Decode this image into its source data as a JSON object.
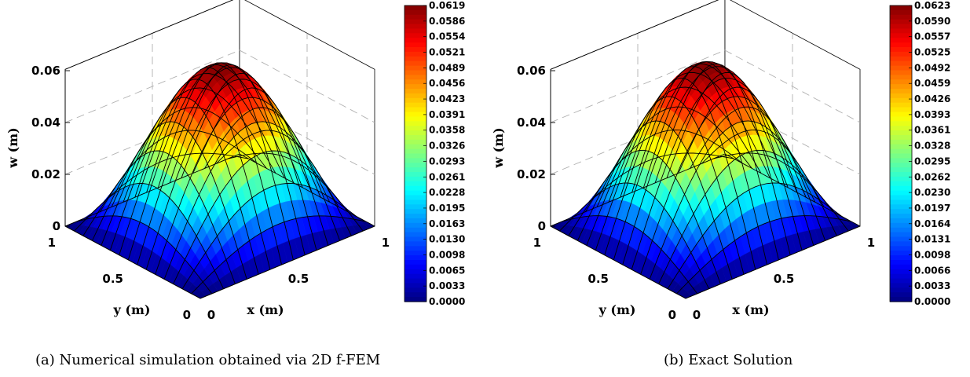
{
  "chart_data": [
    {
      "type": "surface",
      "caption": "(a) Numerical simulation obtained via 2D f-FEM",
      "surface": "w(x,y) peaked at (0.5, 0.5), zero on boundary",
      "peak_value": 0.0619,
      "xlabel": "x (m)",
      "ylabel": "y (m)",
      "zlabel": "w (m)",
      "x_ticks": [
        "0",
        "0.5",
        "1"
      ],
      "y_ticks": [
        "0",
        "0.5",
        "1"
      ],
      "z_ticks": [
        "0",
        "0.02",
        "0.04",
        "0.06"
      ],
      "zlim": [
        0,
        0.06
      ],
      "colormap": "jet",
      "colorbar_ticks": [
        "0.0619",
        "0.0586",
        "0.0554",
        "0.0521",
        "0.0489",
        "0.0456",
        "0.0423",
        "0.0391",
        "0.0358",
        "0.0326",
        "0.0293",
        "0.0261",
        "0.0228",
        "0.0195",
        "0.0163",
        "0.0130",
        "0.0098",
        "0.0065",
        "0.0033",
        "0.0000"
      ],
      "grid": true
    },
    {
      "type": "surface",
      "caption": "(b) Exact Solution",
      "surface": "w(x,y) peaked at (0.5, 0.5), zero on boundary",
      "peak_value": 0.0623,
      "xlabel": "x (m)",
      "ylabel": "y (m)",
      "zlabel": "w (m)",
      "x_ticks": [
        "0",
        "0.5",
        "1"
      ],
      "y_ticks": [
        "0",
        "0.5",
        "1"
      ],
      "z_ticks": [
        "0",
        "0.02",
        "0.04",
        "0.06"
      ],
      "zlim": [
        0,
        0.06
      ],
      "colormap": "jet",
      "colorbar_ticks": [
        "0.0623",
        "0.0590",
        "0.0557",
        "0.0525",
        "0.0492",
        "0.0459",
        "0.0426",
        "0.0393",
        "0.0361",
        "0.0328",
        "0.0295",
        "0.0262",
        "0.0230",
        "0.0197",
        "0.0164",
        "0.0131",
        "0.0098",
        "0.0066",
        "0.0033",
        "0.0000"
      ],
      "grid": true
    }
  ]
}
